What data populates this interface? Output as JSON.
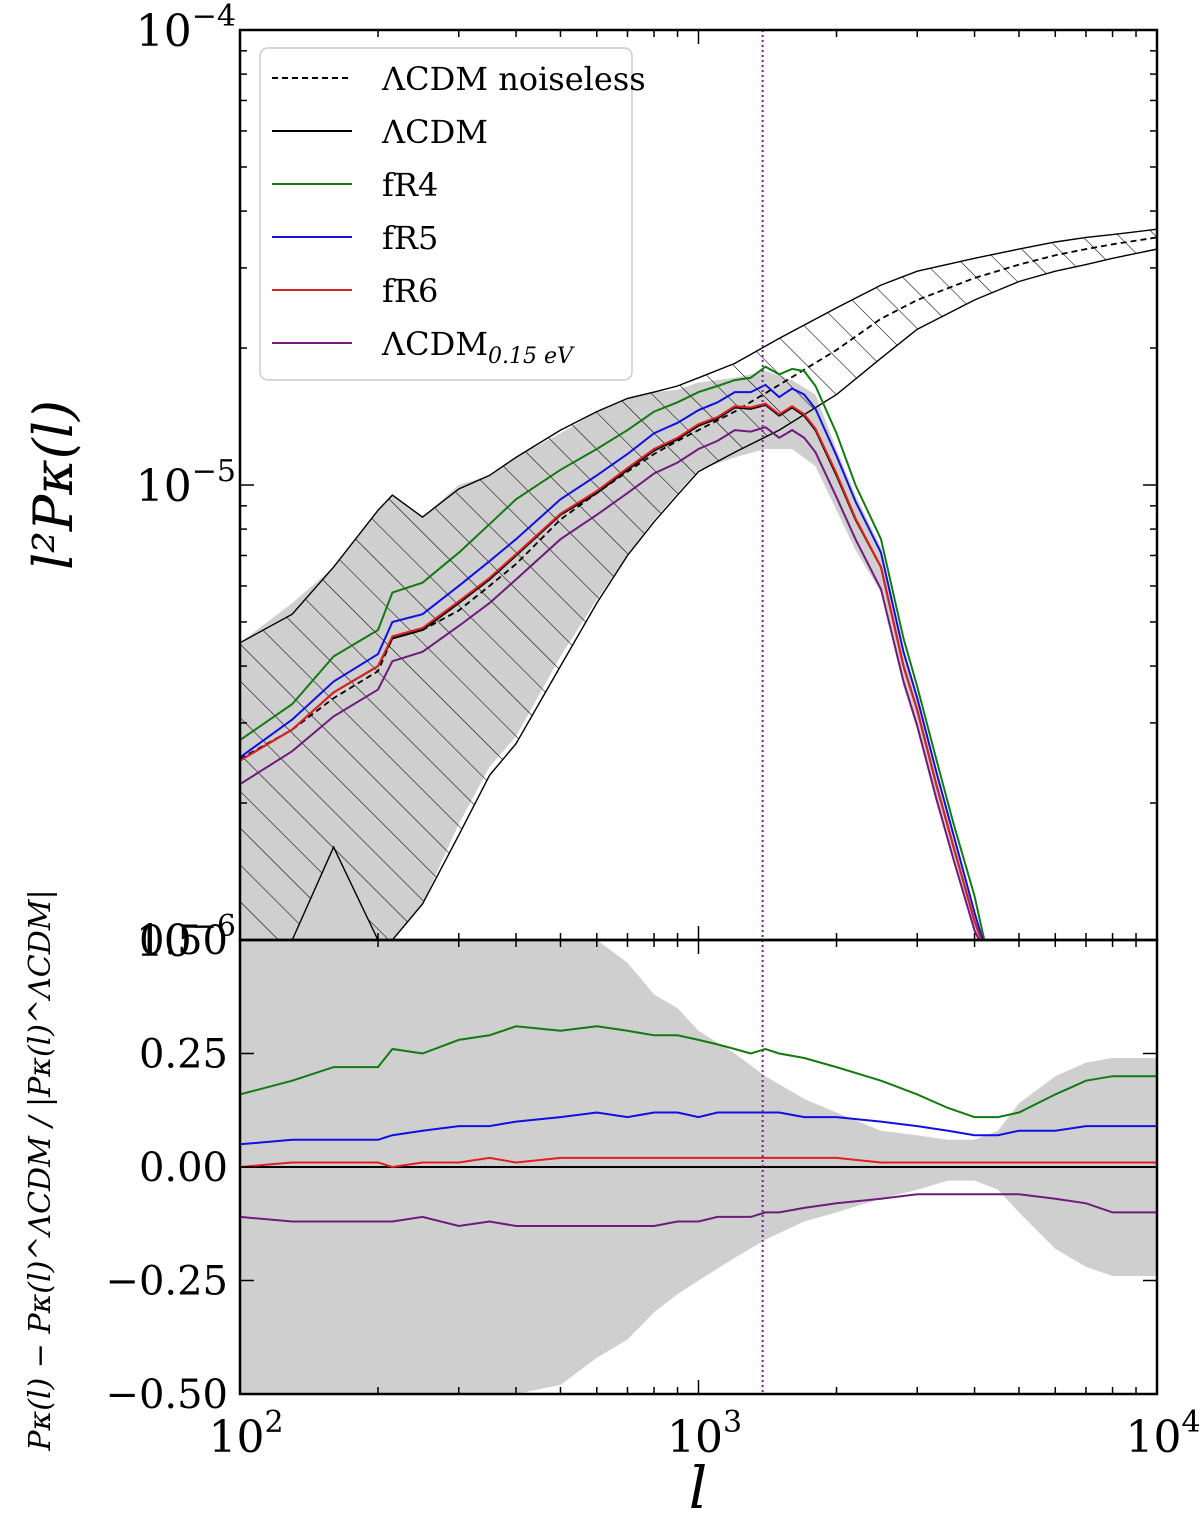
{
  "chart_data": [
    {
      "type": "line",
      "panel": "top",
      "xscale": "log",
      "yscale": "log",
      "xlim": [
        100,
        10000
      ],
      "ylim": [
        1e-06,
        0.0001
      ],
      "ylabel": "l²Pκ(l)",
      "y_ticks": [
        {
          "value": 1e-06,
          "label_base": "10",
          "label_exp": "−6"
        },
        {
          "value": 1e-05,
          "label_base": "10",
          "label_exp": "−5"
        },
        {
          "value": 0.0001,
          "label_base": "10",
          "label_exp": "−4"
        }
      ],
      "vline_x": 1380,
      "vline_color": "#7b1f8c",
      "legend_position": "top-left",
      "legend": [
        {
          "label": "ΛCDM noiseless",
          "color": "#000000",
          "style": "dashed"
        },
        {
          "label": "ΛCDM",
          "color": "#000000",
          "style": "solid"
        },
        {
          "label": "fR4",
          "color": "#117a11",
          "style": "solid"
        },
        {
          "label": "fR5",
          "color": "#1010e0",
          "style": "solid"
        },
        {
          "label": "fR6",
          "color": "#e02020",
          "style": "solid"
        },
        {
          "label": "ΛCDM",
          "subscript": "0.15 eV",
          "color": "#701a7e",
          "style": "solid"
        }
      ],
      "x": [
        100,
        130,
        160,
        200,
        215,
        250,
        300,
        350,
        400,
        500,
        600,
        700,
        800,
        900,
        1000,
        1100,
        1200,
        1300,
        1400,
        1500,
        1600,
        1700,
        1800,
        2000,
        2200,
        2500,
        2800,
        3000,
        3300,
        3600,
        4000,
        4300
      ],
      "series": [
        {
          "name": "ΛCDM noiseless",
          "color": "#000000",
          "style": "dashed",
          "x": [
            100,
            130,
            160,
            200,
            215,
            250,
            300,
            350,
            400,
            500,
            600,
            700,
            800,
            900,
            1000,
            1200,
            1500,
            2000,
            2500,
            3000,
            4000,
            5000,
            6000,
            7000,
            8000,
            10000
          ],
          "values": [
            2.5e-06,
            2.9e-06,
            3.4e-06,
            3.9e-06,
            4.6e-06,
            4.8e-06,
            5.3e-06,
            6e-06,
            6.7e-06,
            8.4e-06,
            9.6e-06,
            1.07e-05,
            1.17e-05,
            1.25e-05,
            1.32e-05,
            1.45e-05,
            1.66e-05,
            1.98e-05,
            2.32e-05,
            2.55e-05,
            2.85e-05,
            3.05e-05,
            3.2e-05,
            3.3e-05,
            3.38e-05,
            3.5e-05
          ]
        },
        {
          "name": "ΛCDM",
          "color": "#000000",
          "style": "solid",
          "values": [
            2.48e-06,
            2.9e-06,
            3.5e-06,
            4e-06,
            4.6e-06,
            4.8e-06,
            5.5e-06,
            6.2e-06,
            7e-06,
            8.6e-06,
            9.6e-06,
            1.08e-05,
            1.19e-05,
            1.26e-05,
            1.35e-05,
            1.4e-05,
            1.48e-05,
            1.47e-05,
            1.5e-05,
            1.42e-05,
            1.48e-05,
            1.42e-05,
            1.32e-05,
            1.05e-05,
            8.4e-06,
            6.6e-06,
            4e-06,
            3.2e-06,
            2.2e-06,
            1.6e-06,
            1.1e-06,
            9e-07
          ]
        },
        {
          "name": "fR4",
          "color": "#117a11",
          "style": "solid",
          "values": [
            2.75e-06,
            3.3e-06,
            4.2e-06,
            4.8e-06,
            5.8e-06,
            6.1e-06,
            7.1e-06,
            8.2e-06,
            9.3e-06,
            1.08e-05,
            1.2e-05,
            1.32e-05,
            1.45e-05,
            1.52e-05,
            1.6e-05,
            1.65e-05,
            1.7e-05,
            1.72e-05,
            1.82e-05,
            1.75e-05,
            1.8e-05,
            1.78e-05,
            1.65e-05,
            1.3e-05,
            1e-05,
            7.6e-06,
            4.6e-06,
            3.6e-06,
            2.5e-06,
            1.8e-06,
            1.25e-06,
            9e-07
          ]
        },
        {
          "name": "fR5",
          "color": "#1010e0",
          "style": "solid",
          "values": [
            2.52e-06,
            3.05e-06,
            3.7e-06,
            4.25e-06,
            5e-06,
            5.2e-06,
            6e-06,
            6.8e-06,
            7.6e-06,
            9.3e-06,
            1.05e-05,
            1.17e-05,
            1.3e-05,
            1.37e-05,
            1.46e-05,
            1.52e-05,
            1.6e-05,
            1.6e-05,
            1.66e-05,
            1.56e-05,
            1.63e-05,
            1.58e-05,
            1.47e-05,
            1.16e-05,
            9.2e-06,
            7.1e-06,
            4.3e-06,
            3.4e-06,
            2.35e-06,
            1.7e-06,
            1.15e-06,
            9e-07
          ]
        },
        {
          "name": "fR6",
          "color": "#e02020",
          "style": "solid",
          "values": [
            2.48e-06,
            2.9e-06,
            3.5e-06,
            4e-06,
            4.65e-06,
            4.85e-06,
            5.55e-06,
            6.25e-06,
            7.05e-06,
            8.65e-06,
            9.7e-06,
            1.09e-05,
            1.2e-05,
            1.27e-05,
            1.36e-05,
            1.41e-05,
            1.49e-05,
            1.48e-05,
            1.51e-05,
            1.43e-05,
            1.49e-05,
            1.43e-05,
            1.33e-05,
            1.06e-05,
            8.45e-06,
            6.6e-06,
            4e-06,
            3.2e-06,
            2.2e-06,
            1.6e-06,
            1.1e-06,
            9e-07
          ]
        },
        {
          "name": "ΛCDM 0.15 eV",
          "color": "#701a7e",
          "style": "solid",
          "values": [
            2.2e-06,
            2.6e-06,
            3.1e-06,
            3.55e-06,
            4.1e-06,
            4.3e-06,
            4.9e-06,
            5.5e-06,
            6.2e-06,
            7.6e-06,
            8.6e-06,
            9.6e-06,
            1.06e-05,
            1.12e-05,
            1.2e-05,
            1.25e-05,
            1.32e-05,
            1.31e-05,
            1.34e-05,
            1.27e-05,
            1.32e-05,
            1.27e-05,
            1.18e-05,
            9.4e-06,
            7.6e-06,
            5.9e-06,
            3.7e-06,
            2.95e-06,
            2.05e-06,
            1.5e-06,
            1.05e-06,
            9e-07
          ]
        }
      ],
      "gray_band": {
        "x": [
          100,
          130,
          160,
          200,
          215,
          250,
          300,
          350,
          400,
          500,
          600,
          700,
          800,
          900,
          1000,
          1200,
          1400,
          1600,
          1800,
          2000,
          2200,
          2500,
          2800,
          3000,
          3300,
          3600,
          4000,
          4300
        ],
        "upper": [
          4.5e-06,
          5.5e-06,
          6.6e-06,
          8.8e-06,
          9.5e-06,
          8.5e-06,
          1e-05,
          1.05e-05,
          1.15e-05,
          1.3e-05,
          1.45e-05,
          1.55e-05,
          1.6e-05,
          1.62e-05,
          1.68e-05,
          1.72e-05,
          1.78e-05,
          1.7e-05,
          1.58e-05,
          1.2e-05,
          9.5e-06,
          7.3e-06,
          4.4e-06,
          3.4e-06,
          2.35e-06,
          1.7e-06,
          1.15e-06,
          9e-07
        ],
        "lower": [
          1e-06,
          1e-06,
          1e-06,
          1e-06,
          1e-06,
          1.2e-06,
          1.8e-06,
          2.4e-06,
          2.8e-06,
          4.2e-06,
          5.6e-06,
          7e-06,
          8.4e-06,
          9.6e-06,
          1.08e-05,
          1.15e-05,
          1.2e-05,
          1.2e-05,
          1.1e-05,
          8.8e-06,
          7.2e-06,
          5.8e-06,
          3.6e-06,
          2.9e-06,
          2e-06,
          1.5e-06,
          1.05e-06,
          9e-07
        ]
      },
      "hatched_band": {
        "x": [
          100,
          130,
          160,
          200,
          215,
          250,
          300,
          350,
          400,
          500,
          600,
          700,
          800,
          900,
          1000,
          1200,
          1500,
          2000,
          2500,
          3000,
          4000,
          5000,
          6000,
          7000,
          8000,
          10000
        ],
        "upper": [
          4.5e-06,
          5.2e-06,
          6.6e-06,
          8.8e-06,
          9.5e-06,
          8.5e-06,
          9.8e-06,
          1.05e-05,
          1.15e-05,
          1.32e-05,
          1.45e-05,
          1.55e-05,
          1.6e-05,
          1.65e-05,
          1.72e-05,
          1.85e-05,
          2.1e-05,
          2.45e-05,
          2.75e-05,
          2.95e-05,
          3.15e-05,
          3.3e-05,
          3.42e-05,
          3.5e-05,
          3.55e-05,
          3.65e-05
        ],
        "lower": [
          1e-06,
          1e-06,
          1.6e-06,
          1e-06,
          1e-06,
          1.2e-06,
          1.7e-06,
          2.3e-06,
          2.7e-06,
          4e-06,
          5.5e-06,
          7e-06,
          8.3e-06,
          9.5e-06,
          1.07e-05,
          1.18e-05,
          1.32e-05,
          1.58e-05,
          1.9e-05,
          2.2e-05,
          2.55e-05,
          2.8e-05,
          2.95e-05,
          3.05e-05,
          3.15e-05,
          3.3e-05
        ]
      }
    },
    {
      "type": "line",
      "panel": "bottom",
      "xscale": "log",
      "xlim": [
        100,
        10000
      ],
      "ylim": [
        -0.5,
        0.5
      ],
      "xlabel": "l",
      "ylabel": "Pκ(l) − Pκ(l)^ΛCDM / |Pκ(l)^ΛCDM|",
      "y_ticks": [
        {
          "value": 0.5,
          "label": "0.50"
        },
        {
          "value": 0.25,
          "label": "0.25"
        },
        {
          "value": 0.0,
          "label": "0.00"
        },
        {
          "value": -0.25,
          "label": "−0.25"
        },
        {
          "value": -0.5,
          "label": "−0.50"
        }
      ],
      "x_ticks": [
        {
          "value": 100,
          "label_base": "10",
          "label_exp": "2"
        },
        {
          "value": 1000,
          "label_base": "10",
          "label_exp": "3"
        },
        {
          "value": 10000,
          "label_base": "10",
          "label_exp": "4"
        }
      ],
      "zero_line": 0,
      "x": [
        100,
        130,
        160,
        200,
        215,
        250,
        300,
        350,
        400,
        500,
        600,
        700,
        800,
        900,
        1000,
        1100,
        1200,
        1300,
        1400,
        1500,
        1700,
        2000,
        2500,
        3000,
        3500,
        4000,
        4500,
        5000,
        6000,
        7000,
        8000,
        10000
      ],
      "series": [
        {
          "name": "fR4",
          "color": "#117a11",
          "values": [
            0.16,
            0.19,
            0.22,
            0.22,
            0.26,
            0.25,
            0.28,
            0.29,
            0.31,
            0.3,
            0.31,
            0.3,
            0.29,
            0.29,
            0.28,
            0.27,
            0.26,
            0.25,
            0.26,
            0.25,
            0.24,
            0.22,
            0.19,
            0.16,
            0.13,
            0.11,
            0.11,
            0.12,
            0.16,
            0.19,
            0.2,
            0.2
          ]
        },
        {
          "name": "fR5",
          "color": "#1010e0",
          "values": [
            0.05,
            0.06,
            0.06,
            0.06,
            0.07,
            0.08,
            0.09,
            0.09,
            0.1,
            0.11,
            0.12,
            0.11,
            0.12,
            0.12,
            0.11,
            0.12,
            0.12,
            0.12,
            0.12,
            0.12,
            0.11,
            0.11,
            0.1,
            0.09,
            0.08,
            0.07,
            0.07,
            0.08,
            0.08,
            0.09,
            0.09,
            0.09
          ]
        },
        {
          "name": "fR6",
          "color": "#e02020",
          "values": [
            0.0,
            0.01,
            0.01,
            0.01,
            0.0,
            0.01,
            0.01,
            0.02,
            0.01,
            0.02,
            0.02,
            0.02,
            0.02,
            0.02,
            0.02,
            0.02,
            0.02,
            0.02,
            0.02,
            0.02,
            0.02,
            0.02,
            0.01,
            0.01,
            0.01,
            0.01,
            0.01,
            0.01,
            0.01,
            0.01,
            0.01,
            0.01
          ]
        },
        {
          "name": "ΛCDM 0.15 eV",
          "color": "#701a7e",
          "values": [
            -0.11,
            -0.12,
            -0.12,
            -0.12,
            -0.12,
            -0.11,
            -0.13,
            -0.12,
            -0.13,
            -0.13,
            -0.13,
            -0.13,
            -0.13,
            -0.12,
            -0.12,
            -0.11,
            -0.11,
            -0.11,
            -0.1,
            -0.1,
            -0.09,
            -0.08,
            -0.07,
            -0.06,
            -0.06,
            -0.06,
            -0.06,
            -0.06,
            -0.07,
            -0.08,
            -0.1,
            -0.1
          ]
        }
      ],
      "gray_band": {
        "x": [
          100,
          130,
          160,
          200,
          215,
          250,
          300,
          350,
          400,
          500,
          600,
          700,
          800,
          900,
          1000,
          1200,
          1400,
          1700,
          2000,
          2500,
          3000,
          3500,
          4000,
          4500,
          5000,
          6000,
          7000,
          8000,
          10000
        ],
        "upper": [
          0.5,
          0.5,
          0.5,
          0.5,
          0.5,
          0.5,
          0.5,
          0.5,
          0.5,
          0.5,
          0.5,
          0.45,
          0.38,
          0.35,
          0.3,
          0.25,
          0.2,
          0.15,
          0.12,
          0.08,
          0.07,
          0.06,
          0.06,
          0.08,
          0.14,
          0.2,
          0.23,
          0.24,
          0.24
        ],
        "lower": [
          -0.5,
          -0.5,
          -0.5,
          -0.5,
          -0.5,
          -0.5,
          -0.5,
          -0.5,
          -0.5,
          -0.48,
          -0.42,
          -0.38,
          -0.32,
          -0.28,
          -0.25,
          -0.2,
          -0.16,
          -0.12,
          -0.1,
          -0.07,
          -0.05,
          -0.03,
          -0.03,
          -0.05,
          -0.1,
          -0.18,
          -0.22,
          -0.24,
          -0.24
        ]
      }
    }
  ]
}
